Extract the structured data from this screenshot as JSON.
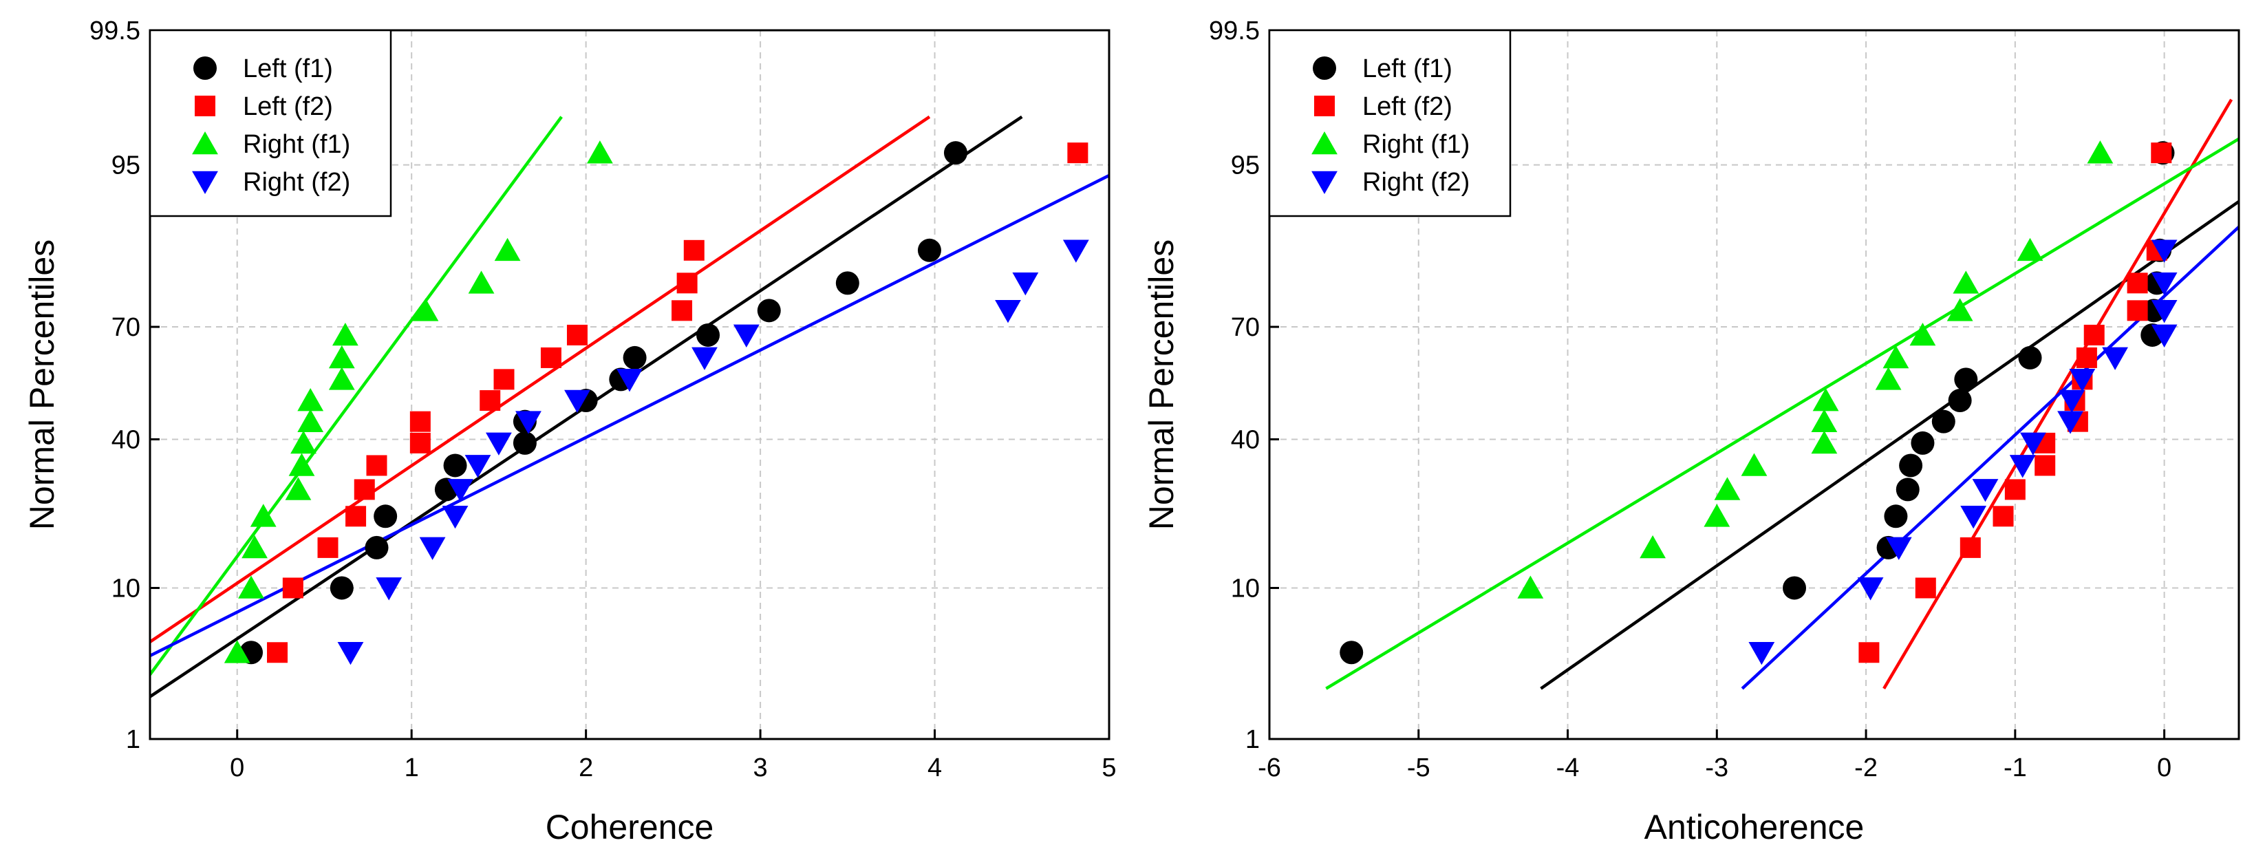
{
  "chart_data": [
    {
      "type": "scatter",
      "subtype": "normal-probability-plot",
      "xlabel": "Coherence",
      "ylabel": "Normal Percentiles",
      "xlim": [
        -0.5,
        5
      ],
      "xticks": [
        0,
        1,
        2,
        3,
        4,
        5
      ],
      "xtick_labels": [
        "0",
        "1",
        "2",
        "3",
        "4",
        "5"
      ],
      "ylim": [
        1,
        99.5
      ],
      "yticks": [
        1,
        10,
        40,
        70,
        95,
        99.5
      ],
      "ytick_labels": [
        "1",
        "10",
        "40",
        "70",
        "95",
        "99.5"
      ],
      "grid": true,
      "legend_position": "top-left",
      "series": [
        {
          "name": "Left (f1)",
          "marker": "circle",
          "color": "#000000",
          "points": [
            [
              0.08,
              4.2
            ],
            [
              0.6,
              10
            ],
            [
              0.8,
              15.8
            ],
            [
              0.85,
              21.6
            ],
            [
              1.2,
              27.4
            ],
            [
              1.25,
              33.2
            ],
            [
              1.65,
              39
            ],
            [
              1.65,
              44.8
            ],
            [
              2.0,
              50.6
            ],
            [
              2.2,
              56.4
            ],
            [
              2.28,
              62.2
            ],
            [
              2.7,
              68
            ],
            [
              3.05,
              73.8
            ],
            [
              3.5,
              79.6
            ],
            [
              3.97,
              85.4
            ],
            [
              4.12,
              95.8
            ]
          ],
          "fit": [
            [
              -0.5,
              2.1
            ],
            [
              4.5,
              97.6
            ]
          ]
        },
        {
          "name": "Left (f2)",
          "marker": "square",
          "color": "#ff0000",
          "points": [
            [
              0.23,
              4.2
            ],
            [
              0.32,
              10
            ],
            [
              0.52,
              15.8
            ],
            [
              0.68,
              21.6
            ],
            [
              0.73,
              27.4
            ],
            [
              0.8,
              33.2
            ],
            [
              1.05,
              39
            ],
            [
              1.05,
              44.8
            ],
            [
              1.45,
              50.6
            ],
            [
              1.53,
              56.4
            ],
            [
              1.8,
              62.2
            ],
            [
              1.95,
              68
            ],
            [
              2.55,
              73.8
            ],
            [
              2.58,
              79.6
            ],
            [
              2.62,
              85.4
            ],
            [
              4.82,
              95.8
            ]
          ],
          "fit": [
            [
              -0.5,
              4.9
            ],
            [
              3.97,
              97.6
            ]
          ]
        },
        {
          "name": "Right (f1)",
          "marker": "triangle-up",
          "color": "#00ee00",
          "points": [
            [
              0.0,
              4.2
            ],
            [
              0.08,
              10
            ],
            [
              0.1,
              15.8
            ],
            [
              0.15,
              21.6
            ],
            [
              0.35,
              27.4
            ],
            [
              0.37,
              33.2
            ],
            [
              0.38,
              39
            ],
            [
              0.42,
              44.8
            ],
            [
              0.42,
              50.6
            ],
            [
              0.6,
              56.4
            ],
            [
              0.6,
              62.2
            ],
            [
              0.62,
              68
            ],
            [
              1.08,
              73.8
            ],
            [
              1.4,
              79.6
            ],
            [
              1.55,
              85.4
            ],
            [
              2.08,
              95.8
            ]
          ],
          "fit": [
            [
              -0.5,
              3.0
            ],
            [
              1.86,
              97.6
            ]
          ]
        },
        {
          "name": "Right (f2)",
          "marker": "triangle-down",
          "color": "#0000ff",
          "points": [
            [
              0.65,
              4.2
            ],
            [
              0.87,
              10
            ],
            [
              1.12,
              15.8
            ],
            [
              1.25,
              21.6
            ],
            [
              1.28,
              27.4
            ],
            [
              1.38,
              33.2
            ],
            [
              1.5,
              39
            ],
            [
              1.67,
              44.8
            ],
            [
              1.95,
              50.6
            ],
            [
              2.25,
              56.4
            ],
            [
              2.68,
              62.2
            ],
            [
              2.92,
              68
            ],
            [
              4.42,
              73.8
            ],
            [
              4.52,
              79.6
            ],
            [
              4.81,
              85.4
            ]
          ],
          "fit": [
            [
              -0.5,
              4.0
            ],
            [
              5,
              94.2
            ]
          ]
        }
      ]
    },
    {
      "type": "scatter",
      "subtype": "normal-probability-plot",
      "xlabel": "Anticoherence",
      "ylabel": "Normal Percentiles",
      "xlim": [
        -6,
        0.5
      ],
      "xticks": [
        -6,
        -5,
        -4,
        -3,
        -2,
        -1,
        0
      ],
      "xtick_labels": [
        "-6",
        "-5",
        "-4",
        "-3",
        "-2",
        "-1",
        "0"
      ],
      "ylim": [
        1,
        99.5
      ],
      "yticks": [
        1,
        10,
        40,
        70,
        95,
        99.5
      ],
      "ytick_labels": [
        "1",
        "10",
        "40",
        "70",
        "95",
        "99.5"
      ],
      "grid": true,
      "legend_position": "top-left",
      "series": [
        {
          "name": "Left (f1)",
          "marker": "circle",
          "color": "#000000",
          "points": [
            [
              -5.45,
              4.2
            ],
            [
              -2.48,
              10
            ],
            [
              -1.85,
              15.8
            ],
            [
              -1.8,
              21.6
            ],
            [
              -1.72,
              27.4
            ],
            [
              -1.7,
              33.2
            ],
            [
              -1.62,
              39
            ],
            [
              -1.48,
              44.8
            ],
            [
              -1.37,
              50.6
            ],
            [
              -1.33,
              56.4
            ],
            [
              -0.9,
              62.2
            ],
            [
              -0.08,
              68
            ],
            [
              -0.07,
              73.8
            ],
            [
              -0.05,
              79.6
            ],
            [
              -0.03,
              85.4
            ],
            [
              -0.01,
              95.8
            ]
          ],
          "fit": [
            [
              -4.18,
              2.4
            ],
            [
              0.5,
              91.8
            ]
          ]
        },
        {
          "name": "Left (f2)",
          "marker": "square",
          "color": "#ff0000",
          "points": [
            [
              -1.98,
              4.2
            ],
            [
              -1.6,
              10
            ],
            [
              -1.3,
              15.8
            ],
            [
              -1.08,
              21.6
            ],
            [
              -1.0,
              27.4
            ],
            [
              -0.8,
              33.2
            ],
            [
              -0.8,
              39
            ],
            [
              -0.58,
              44.8
            ],
            [
              -0.6,
              50.6
            ],
            [
              -0.55,
              56.4
            ],
            [
              -0.52,
              62.2
            ],
            [
              -0.47,
              68
            ],
            [
              -0.18,
              73.8
            ],
            [
              -0.18,
              79.6
            ],
            [
              -0.05,
              85.4
            ],
            [
              -0.02,
              95.8
            ]
          ],
          "fit": [
            [
              -1.88,
              2.4
            ],
            [
              0.45,
              98.2
            ]
          ]
        },
        {
          "name": "Right (f1)",
          "marker": "triangle-up",
          "color": "#00ee00",
          "points": [
            [
              -4.25,
              10
            ],
            [
              -3.43,
              15.8
            ],
            [
              -3.0,
              21.6
            ],
            [
              -2.93,
              27.4
            ],
            [
              -2.75,
              33.2
            ],
            [
              -2.28,
              39
            ],
            [
              -2.28,
              44.8
            ],
            [
              -2.27,
              50.6
            ],
            [
              -1.85,
              56.4
            ],
            [
              -1.8,
              62.2
            ],
            [
              -1.62,
              68
            ],
            [
              -1.37,
              73.8
            ],
            [
              -1.33,
              79.6
            ],
            [
              -0.9,
              85.4
            ],
            [
              -0.43,
              95.8
            ]
          ],
          "fit": [
            [
              -5.62,
              2.4
            ],
            [
              0.5,
              96.6
            ]
          ]
        },
        {
          "name": "Right (f2)",
          "marker": "triangle-down",
          "color": "#0000ff",
          "points": [
            [
              -2.7,
              4.2
            ],
            [
              -1.97,
              10
            ],
            [
              -1.78,
              15.8
            ],
            [
              -1.28,
              21.6
            ],
            [
              -1.2,
              27.4
            ],
            [
              -0.95,
              33.2
            ],
            [
              -0.88,
              39
            ],
            [
              -0.63,
              44.8
            ],
            [
              -0.62,
              50.6
            ],
            [
              -0.55,
              56.4
            ],
            [
              -0.33,
              62.2
            ],
            [
              0.0,
              68
            ],
            [
              0.0,
              73.8
            ],
            [
              0.0,
              79.6
            ],
            [
              0.0,
              85.4
            ]
          ],
          "fit": [
            [
              -2.83,
              2.4
            ],
            [
              0.5,
              88.8
            ]
          ]
        }
      ]
    }
  ]
}
